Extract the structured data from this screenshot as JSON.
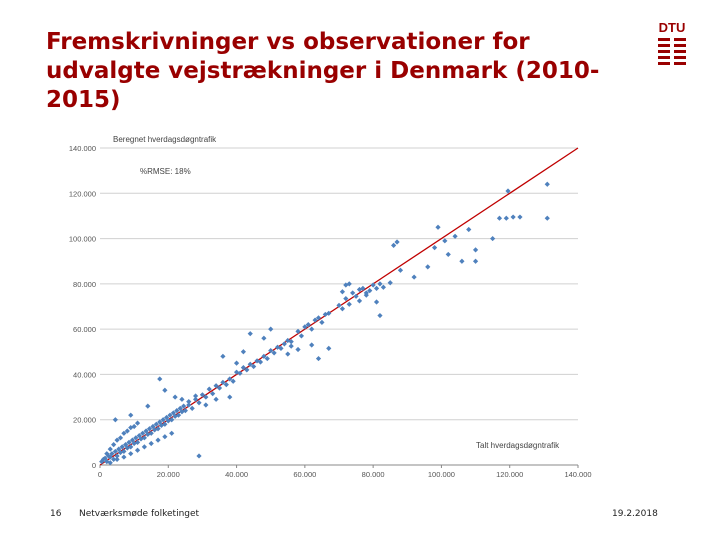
{
  "slide": {
    "title": "Fremskrivninger vs observationer for udvalgte vejstrækninger i Denmark (2010-2015)",
    "logo_text": "DTU",
    "page_number": "16",
    "event": "Netværksmøde folketinget",
    "date": "19.2.2018"
  },
  "colors": {
    "title": "#990000",
    "points": "#4f81bd",
    "line": "#c00000",
    "grid": "#d0d0d0"
  },
  "chart_data": {
    "type": "scatter",
    "ylabel": "Beregnet hverdagsdøgntrafik",
    "xlabel": "Talt hverdagsdøgntrafik",
    "annotation": "%RMSE: 18%",
    "xlim": [
      0,
      140000
    ],
    "ylim": [
      0,
      140000
    ],
    "grid": "horizontal",
    "x_ticks": [
      0,
      20000,
      40000,
      60000,
      80000,
      100000,
      120000,
      140000
    ],
    "x_tick_labels": [
      "0",
      "20,000",
      "40,000",
      "60,000",
      "80,000",
      "100,000",
      "120,000",
      "140,000"
    ],
    "y_ticks": [
      0,
      20000,
      40000,
      60000,
      80000,
      100000,
      120000,
      140000
    ],
    "y_tick_labels": [
      "0",
      "20.000",
      "40.000",
      "60.000",
      "80.000",
      "100.000",
      "120.000",
      "140.000"
    ],
    "reference_line": {
      "from": [
        0,
        0
      ],
      "to": [
        140000,
        140000
      ]
    },
    "points": [
      [
        500,
        1500
      ],
      [
        1000,
        2500
      ],
      [
        1500,
        3000
      ],
      [
        2000,
        1500
      ],
      [
        2500,
        4000
      ],
      [
        3000,
        3500
      ],
      [
        3500,
        5000
      ],
      [
        4000,
        2500
      ],
      [
        4500,
        6000
      ],
      [
        5000,
        4000
      ],
      [
        5500,
        7000
      ],
      [
        6000,
        5500
      ],
      [
        6500,
        8000
      ],
      [
        7000,
        6000
      ],
      [
        7500,
        9000
      ],
      [
        8000,
        7500
      ],
      [
        8500,
        10000
      ],
      [
        9000,
        8000
      ],
      [
        9500,
        11000
      ],
      [
        10000,
        9500
      ],
      [
        10500,
        12000
      ],
      [
        11000,
        10000
      ],
      [
        11500,
        13000
      ],
      [
        12000,
        11500
      ],
      [
        12500,
        14000
      ],
      [
        13000,
        12000
      ],
      [
        13500,
        15000
      ],
      [
        14000,
        13500
      ],
      [
        14500,
        16000
      ],
      [
        15000,
        14000
      ],
      [
        15500,
        17000
      ],
      [
        16000,
        15500
      ],
      [
        16500,
        18000
      ],
      [
        17000,
        16000
      ],
      [
        17500,
        19000
      ],
      [
        18000,
        17500
      ],
      [
        18500,
        20000
      ],
      [
        19000,
        18000
      ],
      [
        19500,
        21000
      ],
      [
        20000,
        19500
      ],
      [
        20500,
        22000
      ],
      [
        21000,
        20000
      ],
      [
        21500,
        23000
      ],
      [
        22000,
        21500
      ],
      [
        22500,
        24000
      ],
      [
        23000,
        22000
      ],
      [
        23500,
        25000
      ],
      [
        24000,
        23500
      ],
      [
        24500,
        26000
      ],
      [
        25000,
        24000
      ],
      [
        2000,
        5000
      ],
      [
        3000,
        7000
      ],
      [
        4000,
        9000
      ],
      [
        5000,
        11000
      ],
      [
        6000,
        12000
      ],
      [
        7000,
        14000
      ],
      [
        8000,
        15000
      ],
      [
        9000,
        16500
      ],
      [
        10000,
        17000
      ],
      [
        11000,
        18500
      ],
      [
        3000,
        1000
      ],
      [
        5000,
        2500
      ],
      [
        7000,
        3500
      ],
      [
        9000,
        5000
      ],
      [
        11000,
        6500
      ],
      [
        13000,
        8000
      ],
      [
        15000,
        9500
      ],
      [
        17000,
        11000
      ],
      [
        19000,
        12500
      ],
      [
        21000,
        14000
      ],
      [
        4500,
        20000
      ],
      [
        9000,
        22000
      ],
      [
        14000,
        26000
      ],
      [
        17500,
        38000
      ],
      [
        19000,
        33000
      ],
      [
        22000,
        30000
      ],
      [
        24000,
        29000
      ],
      [
        26000,
        28000
      ],
      [
        28000,
        30500
      ],
      [
        30000,
        31000
      ],
      [
        26000,
        26500
      ],
      [
        27000,
        25000
      ],
      [
        28000,
        29000
      ],
      [
        29000,
        27500
      ],
      [
        31000,
        30000
      ],
      [
        32000,
        33500
      ],
      [
        33000,
        31500
      ],
      [
        34000,
        35000
      ],
      [
        35000,
        34000
      ],
      [
        36000,
        36500
      ],
      [
        37000,
        35500
      ],
      [
        38000,
        38000
      ],
      [
        39000,
        37000
      ],
      [
        40000,
        41000
      ],
      [
        41000,
        40500
      ],
      [
        42000,
        43000
      ],
      [
        43000,
        42000
      ],
      [
        44000,
        44500
      ],
      [
        45000,
        43500
      ],
      [
        46000,
        46000
      ],
      [
        47000,
        45500
      ],
      [
        48000,
        48000
      ],
      [
        49000,
        47000
      ],
      [
        50000,
        50500
      ],
      [
        51000,
        49500
      ],
      [
        52000,
        52000
      ],
      [
        53000,
        51500
      ],
      [
        54000,
        53500
      ],
      [
        55000,
        55000
      ],
      [
        56000,
        54500
      ],
      [
        36000,
        48000
      ],
      [
        40000,
        45000
      ],
      [
        42000,
        50000
      ],
      [
        44000,
        58000
      ],
      [
        48000,
        56000
      ],
      [
        50000,
        60000
      ],
      [
        29000,
        4000
      ],
      [
        38000,
        30000
      ],
      [
        34000,
        29000
      ],
      [
        31000,
        26500
      ],
      [
        58000,
        59000
      ],
      [
        59000,
        57000
      ],
      [
        60000,
        61000
      ],
      [
        61000,
        62000
      ],
      [
        62000,
        60000
      ],
      [
        63000,
        64000
      ],
      [
        64000,
        65000
      ],
      [
        65000,
        63000
      ],
      [
        66000,
        66500
      ],
      [
        67000,
        67000
      ],
      [
        55000,
        49000
      ],
      [
        56000,
        52500
      ],
      [
        58000,
        51000
      ],
      [
        62000,
        53000
      ],
      [
        67000,
        51500
      ],
      [
        64000,
        47000
      ],
      [
        70000,
        70500
      ],
      [
        71000,
        69000
      ],
      [
        72000,
        73500
      ],
      [
        73000,
        71000
      ],
      [
        74000,
        76000
      ],
      [
        75000,
        74500
      ],
      [
        76000,
        72500
      ],
      [
        77000,
        78000
      ],
      [
        78000,
        75000
      ],
      [
        79000,
        77000
      ],
      [
        80000,
        79500
      ],
      [
        81000,
        78000
      ],
      [
        82000,
        80000
      ],
      [
        83000,
        78500
      ],
      [
        72000,
        79500
      ],
      [
        71000,
        76500
      ],
      [
        73000,
        80000
      ],
      [
        76000,
        77500
      ],
      [
        78000,
        76000
      ],
      [
        81000,
        72000
      ],
      [
        82000,
        66000
      ],
      [
        85000,
        80500
      ],
      [
        86000,
        97000
      ],
      [
        87000,
        98500
      ],
      [
        98000,
        96000
      ],
      [
        99000,
        105000
      ],
      [
        101000,
        99000
      ],
      [
        102000,
        93000
      ],
      [
        104000,
        101000
      ],
      [
        106000,
        90000
      ],
      [
        108000,
        104000
      ],
      [
        110000,
        95000
      ],
      [
        115000,
        100000
      ],
      [
        119000,
        109000
      ],
      [
        117000,
        109000
      ],
      [
        121000,
        109500
      ],
      [
        123000,
        109500
      ],
      [
        119500,
        121000
      ],
      [
        131000,
        124000
      ],
      [
        131000,
        109000
      ],
      [
        110000,
        90000
      ],
      [
        96000,
        87500
      ],
      [
        92000,
        83000
      ],
      [
        88000,
        86000
      ]
    ]
  }
}
